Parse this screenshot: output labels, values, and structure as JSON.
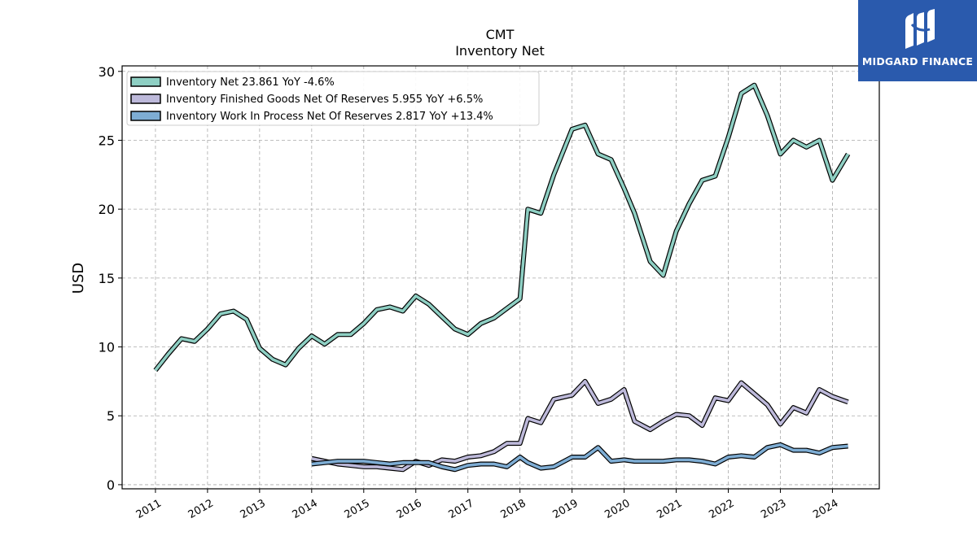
{
  "brand": {
    "name": "MIDGARD FINANCE",
    "color": "#2a5aad",
    "icon": "midgard-logo-icon"
  },
  "chart_data": {
    "type": "line",
    "title": "CMT",
    "subtitle": "Inventory Net",
    "ylabel": "USD",
    "xlabel": "",
    "ylim": [
      -0.3,
      30.4
    ],
    "xlim": [
      2010.36,
      2024.9
    ],
    "yticks": [
      0,
      5,
      10,
      15,
      20,
      25,
      30
    ],
    "xticks": [
      2011,
      2012,
      2013,
      2014,
      2015,
      2016,
      2017,
      2018,
      2019,
      2020,
      2021,
      2022,
      2023,
      2024
    ],
    "grid": true,
    "legend_position": "top-left",
    "series": [
      {
        "name": "Inventory Net",
        "legend_label": "Inventory Net  23.861 YoY -4.6%",
        "color": "#8ecfc3",
        "x": [
          2011.0,
          2011.25,
          2011.5,
          2011.75,
          2012.0,
          2012.25,
          2012.5,
          2012.75,
          2013.0,
          2013.25,
          2013.5,
          2013.75,
          2014.0,
          2014.25,
          2014.5,
          2014.75,
          2015.0,
          2015.25,
          2015.5,
          2015.75,
          2016.0,
          2016.25,
          2016.5,
          2016.75,
          2017.0,
          2017.25,
          2017.5,
          2017.75,
          2018.0,
          2018.15,
          2018.4,
          2018.65,
          2019.0,
          2019.25,
          2019.5,
          2019.75,
          2020.0,
          2020.2,
          2020.5,
          2020.75,
          2021.0,
          2021.25,
          2021.5,
          2021.75,
          2022.0,
          2022.25,
          2022.5,
          2022.75,
          2023.0,
          2023.25,
          2023.5,
          2023.75,
          2024.0,
          2024.3
        ],
        "values": [
          8.3,
          9.5,
          10.6,
          10.4,
          11.3,
          12.4,
          12.6,
          12.0,
          9.9,
          9.1,
          8.7,
          9.9,
          10.8,
          10.2,
          10.9,
          10.9,
          11.7,
          12.7,
          12.9,
          12.6,
          13.7,
          13.1,
          12.2,
          11.3,
          10.9,
          11.7,
          12.1,
          12.8,
          13.5,
          20.0,
          19.7,
          22.5,
          25.8,
          26.1,
          24.0,
          23.6,
          21.5,
          19.7,
          16.2,
          15.2,
          18.4,
          20.4,
          22.1,
          22.4,
          25.2,
          28.4,
          29.0,
          26.8,
          24.0,
          25.0,
          24.5,
          25.0,
          22.1,
          24.0
        ]
      },
      {
        "name": "Inventory Finished Goods Net Of Reserves",
        "legend_label": "Inventory Finished Goods Net Of Reserves  5.955 YoY +6.5%",
        "color": "#bdb9da",
        "x": [
          2014.0,
          2014.25,
          2014.5,
          2014.75,
          2015.0,
          2015.25,
          2015.5,
          2015.75,
          2016.0,
          2016.25,
          2016.5,
          2016.75,
          2017.0,
          2017.25,
          2017.5,
          2017.75,
          2018.0,
          2018.15,
          2018.4,
          2018.65,
          2019.0,
          2019.25,
          2019.5,
          2019.75,
          2020.0,
          2020.2,
          2020.5,
          2020.75,
          2021.0,
          2021.25,
          2021.5,
          2021.75,
          2022.0,
          2022.25,
          2022.5,
          2022.75,
          2023.0,
          2023.25,
          2023.5,
          2023.75,
          2024.0,
          2024.3
        ],
        "values": [
          1.9,
          1.7,
          1.5,
          1.4,
          1.3,
          1.3,
          1.2,
          1.1,
          1.7,
          1.4,
          1.8,
          1.7,
          2.0,
          2.1,
          2.4,
          3.0,
          3.0,
          4.8,
          4.5,
          6.2,
          6.5,
          7.5,
          5.9,
          6.2,
          6.9,
          4.6,
          4.0,
          4.6,
          5.1,
          5.0,
          4.3,
          6.3,
          6.1,
          7.4,
          6.6,
          5.8,
          4.4,
          5.6,
          5.2,
          6.9,
          6.4,
          6.0
        ]
      },
      {
        "name": "Inventory Work In Process Net Of Reserves",
        "legend_label": "Inventory Work In Process Net Of Reserves  2.817 YoY +13.4%",
        "color": "#7eadd4",
        "x": [
          2014.0,
          2014.25,
          2014.5,
          2014.75,
          2015.0,
          2015.25,
          2015.5,
          2015.75,
          2016.0,
          2016.25,
          2016.5,
          2016.75,
          2017.0,
          2017.25,
          2017.5,
          2017.75,
          2018.0,
          2018.15,
          2018.4,
          2018.65,
          2019.0,
          2019.25,
          2019.5,
          2019.75,
          2020.0,
          2020.2,
          2020.5,
          2020.75,
          2021.0,
          2021.25,
          2021.5,
          2021.75,
          2022.0,
          2022.25,
          2022.5,
          2022.75,
          2023.0,
          2023.25,
          2023.5,
          2023.75,
          2024.0,
          2024.3
        ],
        "values": [
          1.5,
          1.6,
          1.7,
          1.7,
          1.7,
          1.6,
          1.5,
          1.6,
          1.6,
          1.6,
          1.3,
          1.1,
          1.4,
          1.5,
          1.5,
          1.3,
          2.0,
          1.6,
          1.2,
          1.3,
          2.0,
          2.0,
          2.7,
          1.7,
          1.8,
          1.7,
          1.7,
          1.7,
          1.8,
          1.8,
          1.7,
          1.5,
          2.0,
          2.1,
          2.0,
          2.7,
          2.9,
          2.5,
          2.5,
          2.3,
          2.7,
          2.8
        ]
      }
    ]
  }
}
